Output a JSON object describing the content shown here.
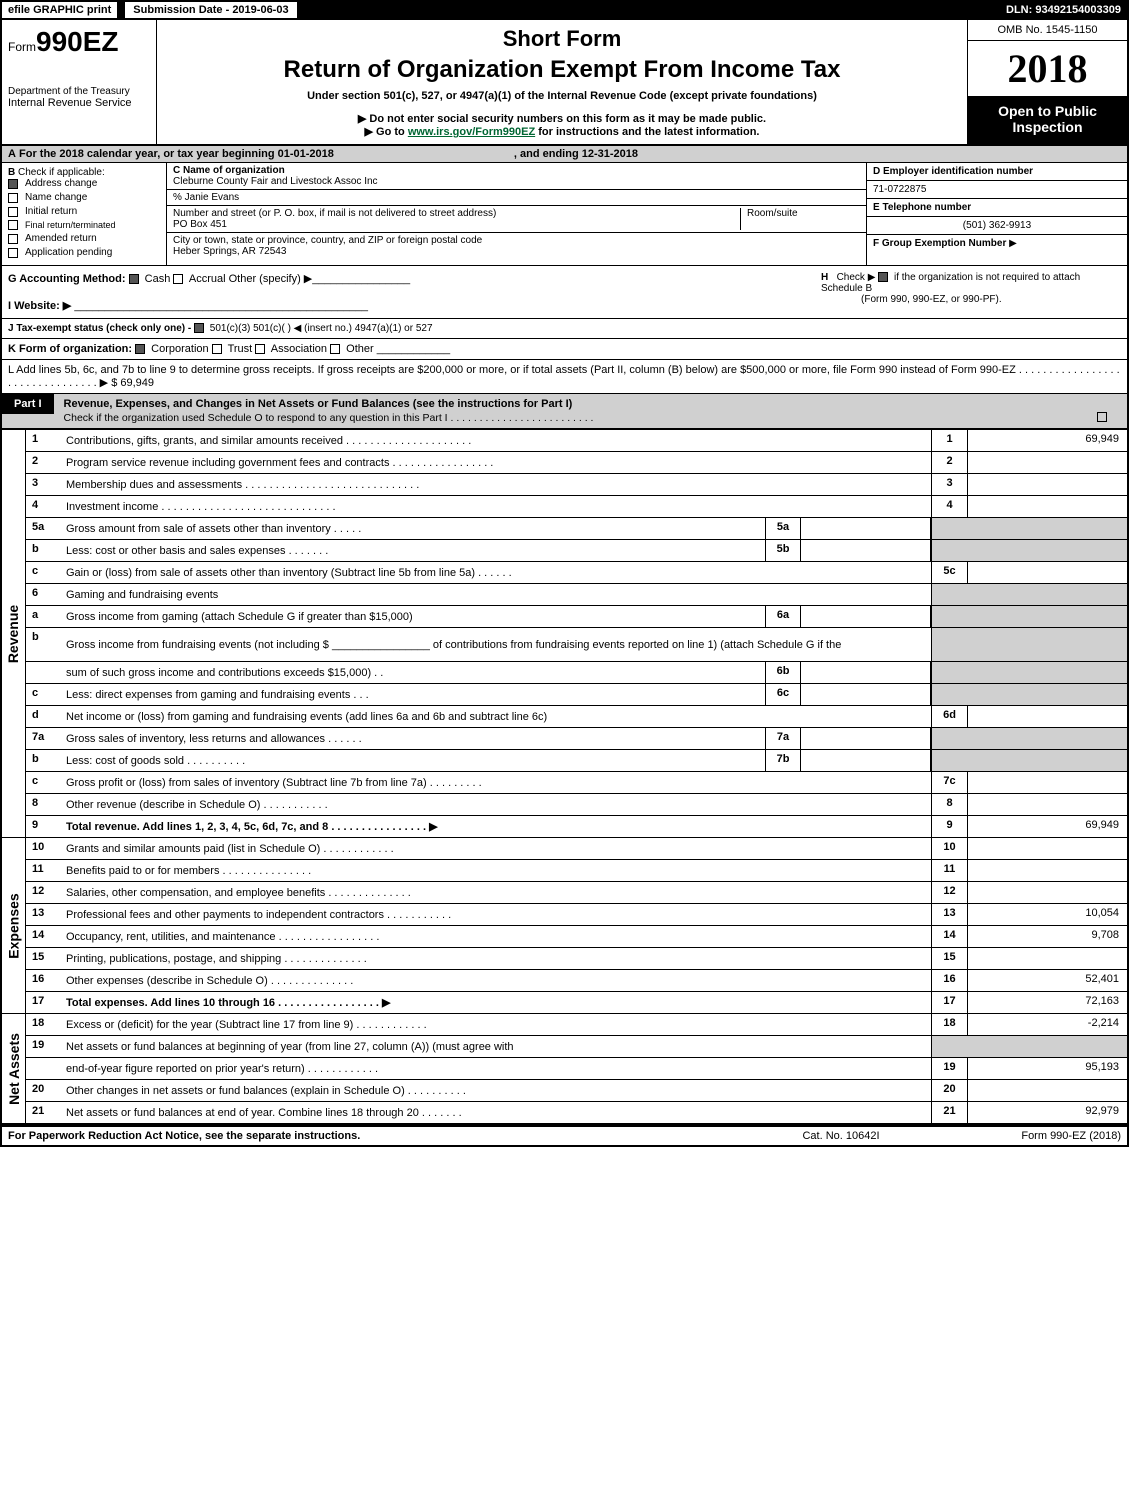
{
  "topbar": {
    "efile": "efile GRAPHIC print",
    "submission_label": "Submission Date - 2019-06-03",
    "dln": "DLN: 93492154003309"
  },
  "header": {
    "form_prefix": "Form",
    "form_number": "990EZ",
    "dept": "Department of the Treasury",
    "irs": "Internal Revenue Service",
    "short_form": "Short Form",
    "return_title": "Return of Organization Exempt From Income Tax",
    "under_section": "Under section 501(c), 527, or 4947(a)(1) of the Internal Revenue Code (except private foundations)",
    "hint1": "▶ Do not enter social security numbers on this form as it may be made public.",
    "hint2_pre": "▶ Go to ",
    "hint2_link": "www.irs.gov/Form990EZ",
    "hint2_post": " for instructions and the latest information.",
    "omb": "OMB No. 1545-1150",
    "year": "2018",
    "open_public1": "Open to Public",
    "open_public2": "Inspection"
  },
  "rowA": {
    "prefix": "A",
    "text1": "For the 2018 calendar year, or tax year beginning 01-01-2018",
    "text2": ", and ending 12-31-2018"
  },
  "colB": {
    "prefix": "B",
    "label": "Check if applicable:",
    "items": [
      "Address change",
      "Name change",
      "Initial return",
      "Final return/terminated",
      "Amended return",
      "Application pending"
    ]
  },
  "colC": {
    "c_label": "C Name of organization",
    "org_name": "Cleburne County Fair and Livestock Assoc Inc",
    "care_of": "% Janie Evans",
    "street_label": "Number and street (or P. O. box, if mail is not delivered to street address)",
    "room_label": "Room/suite",
    "street": "PO Box 451",
    "city_label": "City or town, state or province, country, and ZIP or foreign postal code",
    "city": "Heber Springs, AR  72543"
  },
  "colDE": {
    "d_label": "D Employer identification number",
    "ein": "71-0722875",
    "e_label": "E Telephone number",
    "phone": "(501) 362-9913",
    "f_label": "F Group Exemption Number",
    "f_arrow": "▶"
  },
  "rowGH": {
    "g_label": "G Accounting Method:",
    "g_cash": "Cash",
    "g_accrual": "Accrual",
    "g_other": "Other (specify) ▶",
    "i_label": "I Website: ▶",
    "h_label": "H",
    "h_check": "Check ▶",
    "h_text1": "if the organization is not required to attach Schedule B",
    "h_text2": "(Form 990, 990-EZ, or 990-PF)."
  },
  "rowJ": {
    "label": "J Tax-exempt status (check only one) -",
    "opts": "501(c)(3)   501(c)(  ) ◀ (insert no.)   4947(a)(1) or   527"
  },
  "rowK": {
    "label": "K Form of organization:",
    "corp": "Corporation",
    "trust": "Trust",
    "assoc": "Association",
    "other": "Other"
  },
  "rowL": {
    "text": "L Add lines 5b, 6c, and 7b to line 9 to determine gross receipts. If gross receipts are $200,000 or more, or if total assets (Part II, column (B) below) are $500,000 or more, file Form 990 instead of Form 990-EZ  . . . . . . . . . . . . . . . . . . . . . . . . . . . . . . . . ▶ $ 69,949"
  },
  "part1": {
    "label": "Part I",
    "title": "Revenue, Expenses, and Changes in Net Assets or Fund Balances (see the instructions for Part I)",
    "sub": "Check if the organization used Schedule O to respond to any question in this Part I . . . . . . . . . . . . . . . . . . . . . . . . ."
  },
  "groups": {
    "revenue": "Revenue",
    "expenses": "Expenses",
    "netassets": "Net Assets"
  },
  "lines": [
    {
      "n": "1",
      "d": "Contributions, gifts, grants, and similar amounts received  . . . . . . . . . . . . . . . . . . . . .",
      "rn": "1",
      "rv": "69,949"
    },
    {
      "n": "2",
      "d": "Program service revenue including government fees and contracts  . . . . . . . . . . . . . . . . .",
      "rn": "2",
      "rv": ""
    },
    {
      "n": "3",
      "d": "Membership dues and assessments  . . . . . . . . . . . . . . . . . . . . . . . . . . . . .",
      "rn": "3",
      "rv": ""
    },
    {
      "n": "4",
      "d": "Investment income  . . . . . . . . . . . . . . . . . . . . . . . . . . . . .",
      "rn": "4",
      "rv": ""
    },
    {
      "n": "5a",
      "d": "Gross amount from sale of assets other than inventory  . . . . .",
      "mn": "5a",
      "mv": "",
      "shade": true
    },
    {
      "n": "b",
      "d": "Less: cost or other basis and sales expenses  . . . . . . .",
      "mn": "5b",
      "mv": "",
      "shade": true
    },
    {
      "n": "c",
      "d": "Gain or (loss) from sale of assets other than inventory (Subtract line 5b from line 5a)          . . . . . .",
      "rn": "5c",
      "rv": ""
    },
    {
      "n": "6",
      "d": "Gaming and fundraising events",
      "shade": true
    },
    {
      "n": "a",
      "d": "Gross income from gaming (attach Schedule G if greater than $15,000)",
      "mn": "6a",
      "mv": "",
      "shade": true
    },
    {
      "n": "b",
      "d": "Gross income from fundraising events (not including $ ________________ of contributions from fundraising events reported on line 1) (attach Schedule G if the",
      "shade": true,
      "tall": true
    },
    {
      "n": "",
      "d": "sum of such gross income and contributions exceeds $15,000)       . .",
      "mn": "6b",
      "mv": "",
      "shade": true
    },
    {
      "n": "c",
      "d": "Less: direct expenses from gaming and fundraising events           . . .",
      "mn": "6c",
      "mv": "",
      "shade": true
    },
    {
      "n": "d",
      "d": "Net income or (loss) from gaming and fundraising events (add lines 6a and 6b and subtract line 6c)",
      "rn": "6d",
      "rv": ""
    },
    {
      "n": "7a",
      "d": "Gross sales of inventory, less returns and allowances          . . . . . .",
      "mn": "7a",
      "mv": "",
      "shade": true
    },
    {
      "n": "b",
      "d": "Less: cost of goods sold                           . . . . . . . . . .",
      "mn": "7b",
      "mv": "",
      "shade": true
    },
    {
      "n": "c",
      "d": "Gross profit or (loss) from sales of inventory (Subtract line 7b from line 7a)          . . . . . . . . .",
      "rn": "7c",
      "rv": ""
    },
    {
      "n": "8",
      "d": "Other revenue (describe in Schedule O)                               . . . . . . . . . . .",
      "rn": "8",
      "rv": ""
    },
    {
      "n": "9",
      "d": "Total revenue. Add lines 1, 2, 3, 4, 5c, 6d, 7c, and 8       . . . . . . . . . . . . . . . .  ▶",
      "rn": "9",
      "rv": "69,949",
      "bold": true
    }
  ],
  "expense_lines": [
    {
      "n": "10",
      "d": "Grants and similar amounts paid (list in Schedule O)             . . . . . . . . . . . .",
      "rn": "10",
      "rv": ""
    },
    {
      "n": "11",
      "d": "Benefits paid to or for members                         . . . . . . . . . . . . . . .",
      "rn": "11",
      "rv": ""
    },
    {
      "n": "12",
      "d": "Salaries, other compensation, and employee benefits         . . . . . . . . . . . . . .",
      "rn": "12",
      "rv": ""
    },
    {
      "n": "13",
      "d": "Professional fees and other payments to independent contractors       . . . . . . . . . . .",
      "rn": "13",
      "rv": "10,054"
    },
    {
      "n": "14",
      "d": "Occupancy, rent, utilities, and maintenance         . . . . . . . . . . . . . . . . .",
      "rn": "14",
      "rv": "9,708"
    },
    {
      "n": "15",
      "d": "Printing, publications, postage, and shipping             . . . . . . . . . . . . . .",
      "rn": "15",
      "rv": ""
    },
    {
      "n": "16",
      "d": "Other expenses (describe in Schedule O)                   . . . . . . . . . . . . . .",
      "rn": "16",
      "rv": "52,401"
    },
    {
      "n": "17",
      "d": "Total expenses. Add lines 10 through 16            . . . . . . . . . . . . . . . . .  ▶",
      "rn": "17",
      "rv": "72,163",
      "bold": true
    }
  ],
  "asset_lines": [
    {
      "n": "18",
      "d": "Excess or (deficit) for the year (Subtract line 17 from line 9)         . . . . . . . . . . . .",
      "rn": "18",
      "rv": "-2,214"
    },
    {
      "n": "19",
      "d": "Net assets or fund balances at beginning of year (from line 27, column (A)) (must agree with",
      "shade": true
    },
    {
      "n": "",
      "d": "end-of-year figure reported on prior year's return)               . . . . . . . . . . . .",
      "rn": "19",
      "rv": "95,193"
    },
    {
      "n": "20",
      "d": "Other changes in net assets or fund balances (explain in Schedule O)       . . . . . . . . . .",
      "rn": "20",
      "rv": ""
    },
    {
      "n": "21",
      "d": "Net assets or fund balances at end of year. Combine lines 18 through 20         . . . . . . .",
      "rn": "21",
      "rv": "92,979"
    }
  ],
  "footer": {
    "left": "For Paperwork Reduction Act Notice, see the separate instructions.",
    "mid": "Cat. No. 10642I",
    "right": "Form 990-EZ (2018)"
  }
}
